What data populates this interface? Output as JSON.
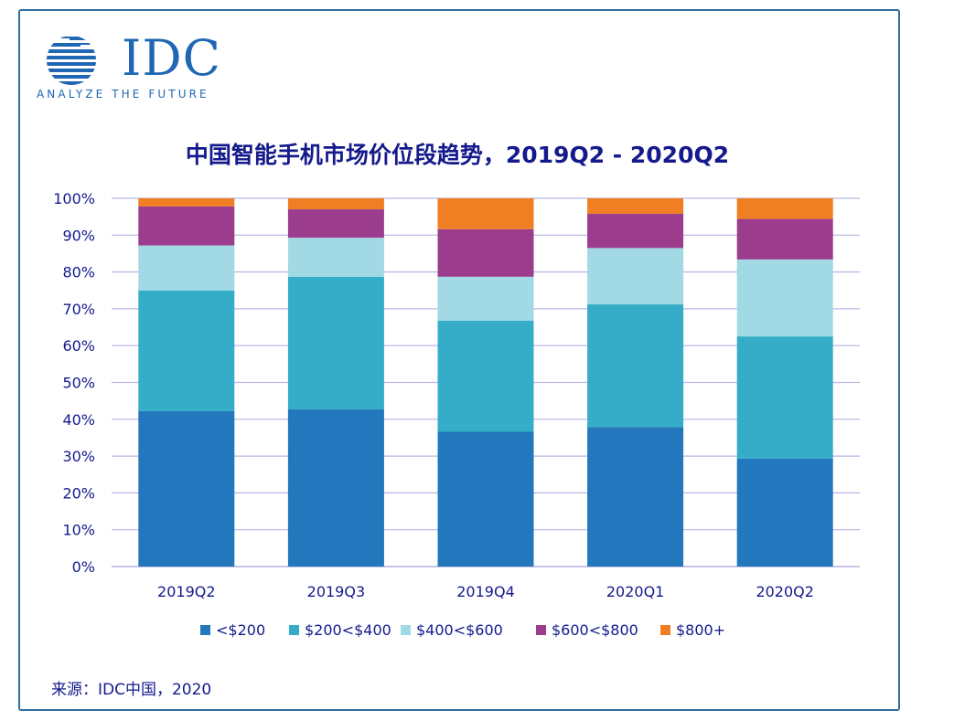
{
  "logo": {
    "wordmark": "IDC",
    "tagline": "ANALYZE THE FUTURE"
  },
  "source_note": "来源：IDC中国，2020",
  "colors": {
    "frame": "#2f6f9f",
    "title": "#141a8c",
    "gridline": "#b9b3e6"
  },
  "chart_data": {
    "type": "bar",
    "stacked": true,
    "title": "中国智能手机市场价位段趋势，2019Q2 - 2020Q2",
    "xlabel": "",
    "ylabel": "",
    "ylim": [
      0,
      100
    ],
    "yticks": [
      "0%",
      "10%",
      "20%",
      "30%",
      "40%",
      "50%",
      "60%",
      "70%",
      "80%",
      "90%",
      "100%"
    ],
    "categories": [
      "2019Q2",
      "2019Q3",
      "2019Q4",
      "2020Q1",
      "2020Q2"
    ],
    "grid": true,
    "legend_position": "bottom",
    "series": [
      {
        "name": "<$200",
        "color": "#2377bd",
        "values": [
          42.2,
          42.7,
          36.6,
          37.9,
          29.3
        ]
      },
      {
        "name": "$200<$400",
        "color": "#35adc8",
        "values": [
          32.8,
          36.0,
          30.2,
          33.3,
          33.2
        ]
      },
      {
        "name": "$400<$600",
        "color": "#a1d9e4",
        "values": [
          12.2,
          10.6,
          11.9,
          15.3,
          20.9
        ]
      },
      {
        "name": "$600<$800",
        "color": "#9b3c8d",
        "values": [
          10.6,
          7.7,
          12.9,
          9.3,
          11.0
        ]
      },
      {
        "name": "$800+",
        "color": "#f07f23",
        "values": [
          2.2,
          3.0,
          8.4,
          4.2,
          5.6
        ]
      }
    ]
  }
}
